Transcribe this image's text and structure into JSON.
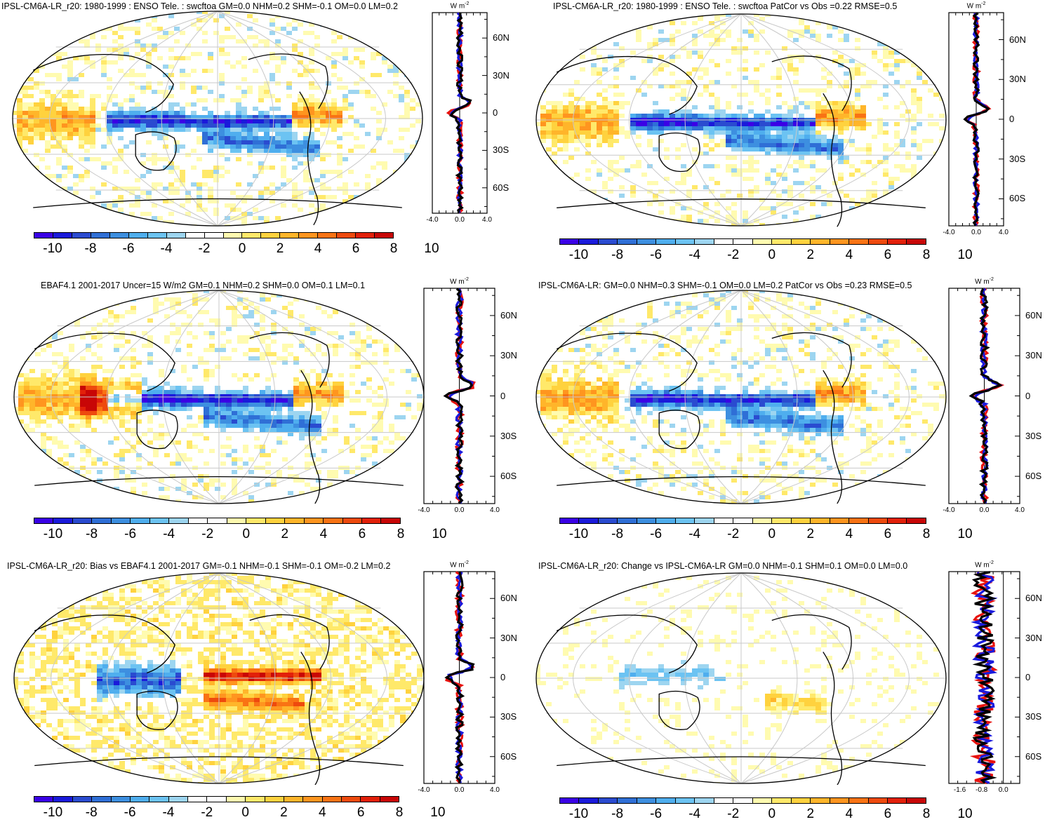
{
  "colorbar": {
    "labels": [
      "-10",
      "-8",
      "-6",
      "-4",
      "-2",
      "0",
      "2",
      "4",
      "6",
      "8",
      "10"
    ],
    "colors": [
      "#3a00e6",
      "#1a1adb",
      "#2a4bd0",
      "#2f6fd6",
      "#3d8fe0",
      "#4faeee",
      "#6cc3f2",
      "#9dd5f0",
      "#ffffff",
      "#ffffff",
      "#fffbb0",
      "#ffe96a",
      "#ffd23e",
      "#ffb52a",
      "#ff951f",
      "#f97314",
      "#ee4a0e",
      "#e2200a",
      "#c80606"
    ]
  },
  "panels": [
    {
      "id": "p1",
      "title": "IPSL-CM6A-LR_r20: 1980-1999 : ENSO Tele. : swcftoa GM=0.0 NHM=0.2 SHM=-0.1 OM=0.0 LM=0.2",
      "unit": "W m",
      "unit_sup": "-2",
      "lat_labels": [
        "60N",
        "30N",
        "0",
        "30S",
        "60S"
      ],
      "x_labels": [
        "-4.0",
        "0.0",
        "4.0"
      ],
      "x_range": [
        -4,
        4
      ],
      "pattern": "enso_model"
    },
    {
      "id": "p2",
      "title": "IPSL-CM6A-LR_r20: 1980-1999 : ENSO Tele. : swcftoa PatCor vs Obs =0.22 RMSE=0.5",
      "unit": "W m",
      "unit_sup": "-2",
      "lat_labels": [
        "60N",
        "30N",
        "0",
        "30S",
        "60S"
      ],
      "x_labels": [
        "-4.0",
        "0.0",
        "4.0"
      ],
      "x_range": [
        -4,
        4
      ],
      "pattern": "enso_model"
    },
    {
      "id": "p3",
      "title": "EBAF4.1 2001-2017 Uncer=15 W/m2 GM=0.1 NHM=0.2 SHM=0.0 OM=0.1 LM=0.1",
      "unit": "W m",
      "unit_sup": "-2",
      "lat_labels": [
        "60N",
        "30N",
        "0",
        "30S",
        "60S"
      ],
      "x_labels": [
        "-4.0",
        "0.0",
        "4.0"
      ],
      "x_range": [
        -4,
        4
      ],
      "pattern": "enso_obs"
    },
    {
      "id": "p4",
      "title": "IPSL-CM6A-LR: GM=0.0 NHM=0.3 SHM=-0.1 OM=0.0 LM=0.2 PatCor vs Obs =0.23 RMSE=0.5",
      "unit": "W m",
      "unit_sup": "-2",
      "lat_labels": [
        "60N",
        "30N",
        "0",
        "30S",
        "60S"
      ],
      "x_labels": [
        "-4.0",
        "0.0",
        "4.0"
      ],
      "x_range": [
        -4,
        4
      ],
      "pattern": "enso_model"
    },
    {
      "id": "p5",
      "title": "IPSL-CM6A-LR_r20: Bias vs EBAF4.1 2001-2017 GM=-0.1 NHM=-0.1 SHM=-0.1 OM=-0.2 LM=0.2",
      "unit": "W m",
      "unit_sup": "-2",
      "lat_labels": [
        "60N",
        "30N",
        "0",
        "30S",
        "60S"
      ],
      "x_labels": [
        "-4.0",
        "0.0",
        "4.0"
      ],
      "x_range": [
        -4,
        4
      ],
      "pattern": "bias"
    },
    {
      "id": "p6",
      "title": "IPSL-CM6A-LR_r20: Change vs IPSL-CM6A-LR GM=0.0 NHM=-0.1 SHM=0.1 OM=0.0 LM=0.0",
      "unit": "W m",
      "unit_sup": "-2",
      "lat_labels": [
        "60N",
        "30N",
        "0",
        "30S",
        "60S"
      ],
      "x_labels": [
        "-1.6",
        "-0.8",
        "0.0"
      ],
      "x_range": [
        -2.0,
        0.6
      ],
      "pattern": "change"
    }
  ]
}
